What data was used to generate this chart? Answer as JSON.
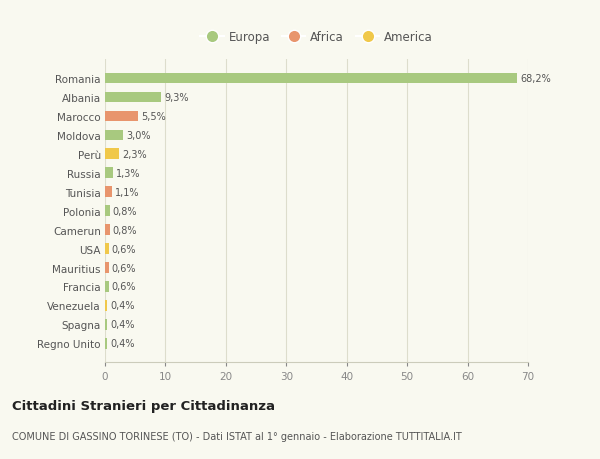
{
  "countries": [
    "Romania",
    "Albania",
    "Marocco",
    "Moldova",
    "Perù",
    "Russia",
    "Tunisia",
    "Polonia",
    "Camerun",
    "USA",
    "Mauritius",
    "Francia",
    "Venezuela",
    "Spagna",
    "Regno Unito"
  ],
  "values": [
    68.2,
    9.3,
    5.5,
    3.0,
    2.3,
    1.3,
    1.1,
    0.8,
    0.8,
    0.6,
    0.6,
    0.6,
    0.4,
    0.4,
    0.4
  ],
  "labels": [
    "68,2%",
    "9,3%",
    "5,5%",
    "3,0%",
    "2,3%",
    "1,3%",
    "1,1%",
    "0,8%",
    "0,8%",
    "0,6%",
    "0,6%",
    "0,6%",
    "0,4%",
    "0,4%",
    "0,4%"
  ],
  "colors": [
    "#a8c97f",
    "#a8c97f",
    "#e8956d",
    "#a8c97f",
    "#f0c84a",
    "#a8c97f",
    "#e8956d",
    "#a8c97f",
    "#e8956d",
    "#f0c84a",
    "#e8956d",
    "#a8c97f",
    "#f0c84a",
    "#a8c97f",
    "#a8c97f"
  ],
  "legend_labels": [
    "Europa",
    "Africa",
    "America"
  ],
  "legend_colors": [
    "#a8c97f",
    "#e8956d",
    "#f0c84a"
  ],
  "title": "Cittadini Stranieri per Cittadinanza",
  "subtitle": "COMUNE DI GASSINO TORINESE (TO) - Dati ISTAT al 1° gennaio - Elaborazione TUTTITALIA.IT",
  "xlim": [
    0,
    70
  ],
  "xticks": [
    0,
    10,
    20,
    30,
    40,
    50,
    60,
    70
  ],
  "background_color": "#f9f9f0",
  "grid_color": "#ddddcc"
}
